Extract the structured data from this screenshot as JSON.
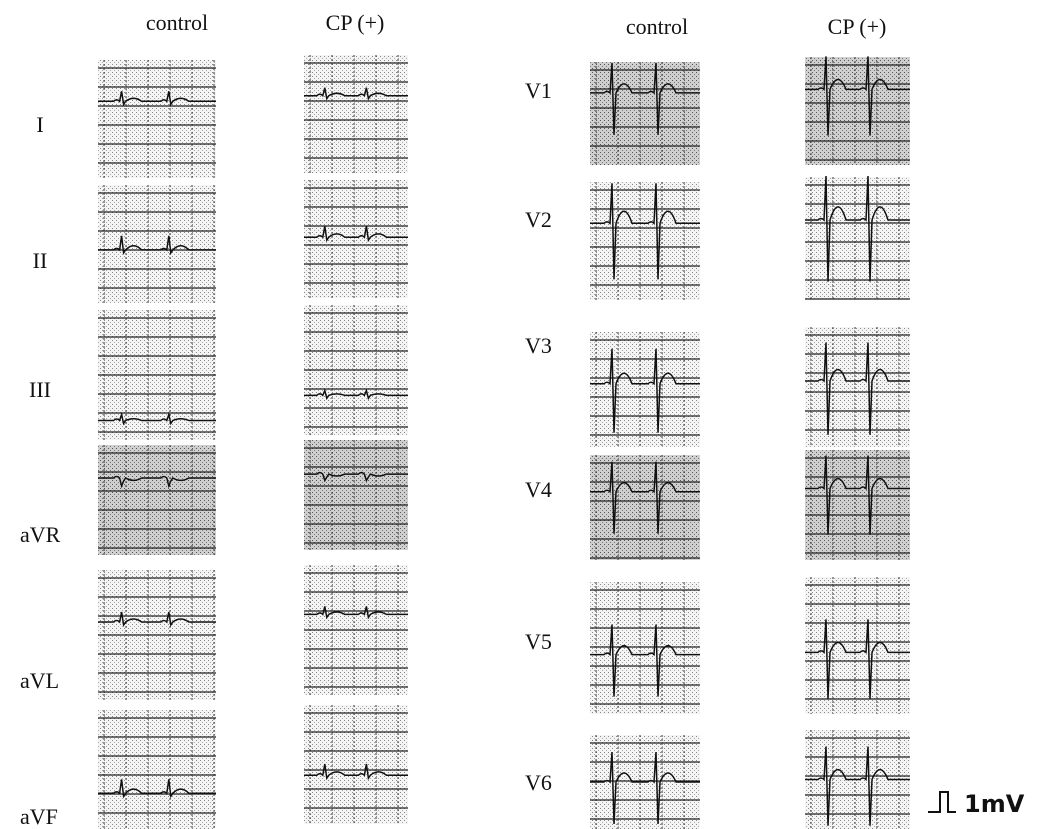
{
  "left": {
    "headers": [
      "control",
      "CP (+)"
    ],
    "leads": [
      "I",
      "II",
      "III",
      "aVR",
      "aVL",
      "aVF"
    ]
  },
  "right": {
    "headers": [
      "control",
      "CP (+)"
    ],
    "leads": [
      "V1",
      "V2",
      "V3",
      "V4",
      "V5",
      "V6"
    ]
  },
  "calibration": "1mV"
}
